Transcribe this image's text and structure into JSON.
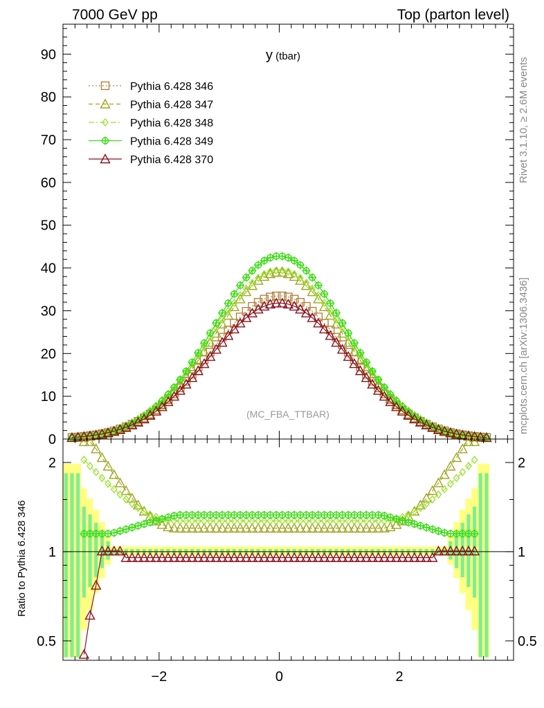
{
  "header": {
    "left": "7000 GeV pp",
    "right": "Top (parton level)"
  },
  "side": {
    "rivet": "Rivet 3.1.10, ≥ 2.6M events",
    "mcplots": "mcplots.cern.ch [arXiv:1306.3436]"
  },
  "plot_title": {
    "main": "y",
    "sub": " (tbar)"
  },
  "watermark": "(MC_FBA_TTBAR)",
  "ratio_ylabel": "Ratio to Pythia 6.428 346",
  "colors": {
    "s346": "#b5803c",
    "s347": "#9ea51e",
    "s348": "#9be02c",
    "s349": "#3cdc14",
    "s370": "#8b0f1f",
    "band_yellow": "#ffff80",
    "band_green": "#80ee90"
  },
  "chart_data": [
    {
      "type": "line",
      "panel": "main",
      "x_range": [
        -3.6,
        3.9
      ],
      "ylim": [
        0,
        97
      ],
      "yticks": [
        0,
        10,
        20,
        30,
        40,
        50,
        60,
        70,
        80,
        90
      ],
      "xticks": [
        -2,
        0,
        2
      ],
      "legend": "top-left",
      "series": [
        {
          "name": "Pythia 6.428 346",
          "marker": "square-open",
          "line": "dotted",
          "peak": 33.5,
          "width": 1.15
        },
        {
          "name": "Pythia 6.428 347",
          "marker": "triangle-open",
          "line": "dashed",
          "peak": 39.0,
          "width": 1.1
        },
        {
          "name": "Pythia 6.428 348",
          "marker": "diamond-open",
          "line": "dashdot",
          "peak": 39.5,
          "width": 1.14
        },
        {
          "name": "Pythia 6.428 349",
          "marker": "cross-circle",
          "line": "solid",
          "peak": 42.8,
          "width": 1.1
        },
        {
          "name": "Pythia 6.428 370",
          "marker": "triangle-open",
          "line": "solid",
          "peak": 31.8,
          "width": 1.15
        }
      ]
    },
    {
      "type": "line",
      "panel": "ratio",
      "x_range": [
        -3.6,
        3.9
      ],
      "ylim": [
        0.43,
        2.4
      ],
      "log_y": true,
      "yticks": [
        0.5,
        1,
        2
      ],
      "xticks": [
        -2,
        0,
        2
      ],
      "series": [
        {
          "name": "Pythia 6.428 347",
          "center": 1.2,
          "edge": 2.3
        },
        {
          "name": "Pythia 6.428 348",
          "center": 1.27,
          "edge": 1.9
        },
        {
          "name": "Pythia 6.428 349",
          "center": 1.33,
          "edge": 1.15
        },
        {
          "name": "Pythia 6.428 370",
          "center": 0.955,
          "edge": 0.97
        }
      ]
    }
  ]
}
